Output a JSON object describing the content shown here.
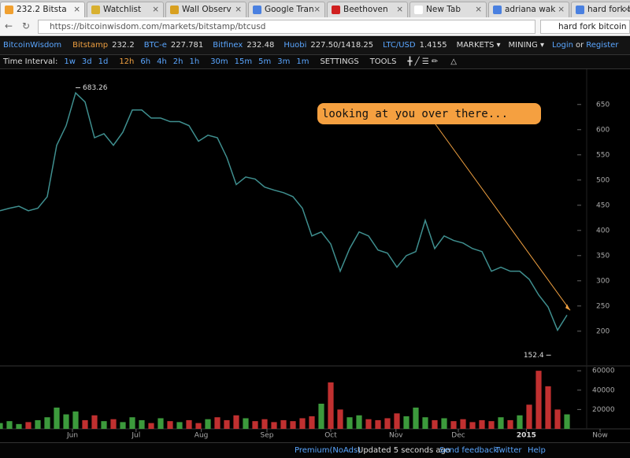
{
  "browser": {
    "tabs": [
      "232.2 Bitsta",
      "Watchlist",
      "Wall Observ",
      "Google Tran",
      "Beethoven",
      "New Tab",
      "adriana wak",
      "hard fork bit"
    ],
    "url": "https://bitcoinwisdom.com/markets/bitstamp/btcusd",
    "search": "hard fork bitcoin rolle"
  },
  "navbar": {
    "brand": "BitcoinWisdom",
    "tickers": [
      {
        "name": "Bitstamp",
        "value": "232.2"
      },
      {
        "name": "BTC-e",
        "value": "227.781"
      },
      {
        "name": "Bitfinex",
        "value": "232.48"
      },
      {
        "name": "Huobi",
        "value": "227.50/1418.25"
      },
      {
        "name": "LTC/USD",
        "value": "1.4155"
      }
    ],
    "menus": [
      "MARKETS",
      "MINING"
    ],
    "login": "Login",
    "or": "or",
    "register": "Register"
  },
  "toolbar": {
    "label": "Time Interval:",
    "intervals": [
      "1w",
      "3d",
      "1d",
      "12h",
      "6h",
      "4h",
      "2h",
      "1h",
      "30m",
      "15m",
      "5m",
      "3m",
      "1m"
    ],
    "settings": "SETTINGS",
    "tools": "TOOLS"
  },
  "chart_data": [
    {
      "type": "line",
      "color": "#3f8f8f",
      "values": [
        439,
        444,
        448,
        439,
        444,
        467,
        569,
        608,
        673,
        655,
        584,
        592,
        569,
        595,
        639,
        639,
        623,
        623,
        616,
        616,
        608,
        577,
        589,
        584,
        545,
        491,
        506,
        502,
        486,
        480,
        475,
        467,
        444,
        389,
        397,
        373,
        319,
        364,
        397,
        389,
        361,
        355,
        327,
        350,
        358,
        420,
        364,
        389,
        380,
        375,
        364,
        358,
        319,
        327,
        319,
        319,
        303,
        272,
        248,
        202,
        232
      ],
      "xlim": [
        0,
        62.5
      ],
      "xticks": [
        {
          "value": 7.67,
          "label": "Jun"
        },
        {
          "value": 14.4,
          "label": "Jul"
        },
        {
          "value": 21.3,
          "label": "Aug"
        },
        {
          "value": 28.25,
          "label": "Sep"
        },
        {
          "value": 35,
          "label": "Oct"
        },
        {
          "value": 41.9,
          "label": "Nov"
        },
        {
          "value": 48.5,
          "label": "Dec"
        },
        {
          "value": 55.7,
          "label": "2015"
        },
        {
          "value": 63.5,
          "label": "Now"
        }
      ],
      "ylim": [
        131,
        709
      ],
      "yticks": [
        200,
        250,
        300,
        350,
        400,
        450,
        500,
        550,
        600,
        650
      ],
      "annotations": [
        {
          "label": "683.26",
          "value": 683.26,
          "x": 8
        },
        {
          "label": "152.4",
          "value": 152.4,
          "x": 58.3
        }
      ],
      "callout": "looking at you over there..."
    },
    {
      "type": "bar",
      "up_color": "#3c9a3c",
      "down_color": "#c03030",
      "values": [
        6000,
        8000,
        5000,
        7000,
        9000,
        12000,
        22000,
        15000,
        18000,
        9000,
        14000,
        8000,
        10000,
        7000,
        12000,
        9000,
        6000,
        11000,
        8000,
        7000,
        9000,
        6000,
        10000,
        12000,
        9000,
        14000,
        11000,
        8000,
        10000,
        7000,
        9000,
        8000,
        11000,
        13000,
        26000,
        48000,
        20000,
        12000,
        14000,
        10000,
        9000,
        11000,
        16000,
        13000,
        22000,
        12000,
        9000,
        11000,
        8000,
        10000,
        7000,
        9000,
        8000,
        12000,
        9000,
        14000,
        25000,
        60000,
        44000,
        20000,
        15000
      ],
      "xlim": [
        0,
        62.5
      ],
      "ylim": [
        0,
        65000
      ],
      "yticks": [
        20000,
        40000,
        60000
      ]
    }
  ],
  "footer": {
    "links": [
      "Premium(NoAds)",
      "Updated 5 seconds ago",
      "Send feedback",
      "Twitter",
      "Help"
    ]
  }
}
